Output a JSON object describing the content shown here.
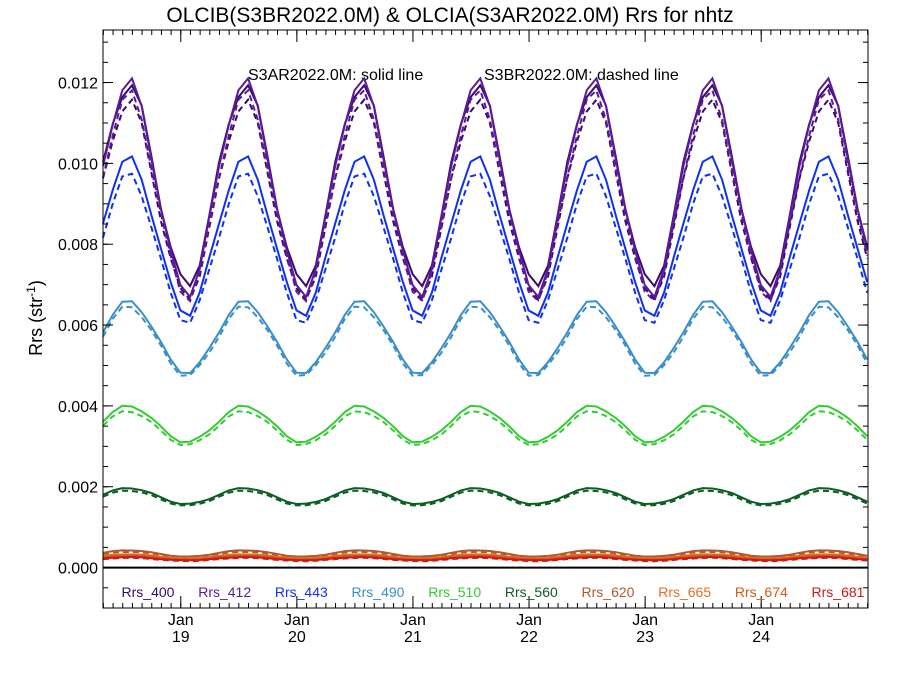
{
  "chart_data": {
    "type": "line",
    "title": "OLCIB(S3BR2022.0M) & OLCIA(S3AR2022.0M)  Rrs for nhtz",
    "ylabel": "Rrs (str",
    "ylabel_sup": "-1",
    "ylabel_close": ")",
    "annotation_solid": "S3AR2022.0M: solid line",
    "annotation_dashed": "S3BR2022.0M: dashed line",
    "ylim": [
      -0.001,
      0.0133
    ],
    "xlim": [
      2018.33,
      2024.92
    ],
    "yticks": [
      "0.000",
      "0.002",
      "0.004",
      "0.006",
      "0.008",
      "0.010",
      "0.012"
    ],
    "ytick_values": [
      0,
      0.002,
      0.004,
      0.006,
      0.008,
      0.01,
      0.012
    ],
    "xticks": [
      {
        "month": "Jan",
        "year": "19",
        "x": 2019.0
      },
      {
        "month": "Jan",
        "year": "20",
        "x": 2020.0
      },
      {
        "month": "Jan",
        "year": "21",
        "x": 2021.0
      },
      {
        "month": "Jan",
        "year": "22",
        "x": 2022.0
      },
      {
        "month": "Jan",
        "year": "23",
        "x": 2023.0
      },
      {
        "month": "Jan",
        "year": "24",
        "x": 2024.0
      }
    ],
    "x_range": [
      2018.33,
      2024.92
    ],
    "series": [
      {
        "name": "Rrs_400",
        "color": "#3b0a6e",
        "solid": {
          "mean": 0.00945,
          "amp": 0.00245
        },
        "dashed": {
          "mean": 0.0091,
          "amp": 0.0024
        }
      },
      {
        "name": "Rrs_412",
        "color": "#5b1a99",
        "solid": {
          "mean": 0.0094,
          "amp": 0.0026
        },
        "dashed": {
          "mean": 0.0092,
          "amp": 0.0025
        }
      },
      {
        "name": "Rrs_443",
        "color": "#1030f0",
        "solid": {
          "mean": 0.0082,
          "amp": 0.0019
        },
        "dashed": {
          "mean": 0.0079,
          "amp": 0.0018
        }
      },
      {
        "name": "Rrs_490",
        "color": "#3a8fc8",
        "solid": {
          "mean": 0.0057,
          "amp": 0.00088
        },
        "dashed": {
          "mean": 0.0056,
          "amp": 0.00085
        }
      },
      {
        "name": "Rrs_510",
        "color": "#33cc33",
        "solid": {
          "mean": 0.00355,
          "amp": 0.00045
        },
        "dashed": {
          "mean": 0.00345,
          "amp": 0.00042
        }
      },
      {
        "name": "Rrs_560",
        "color": "#0c5e24",
        "solid": {
          "mean": 0.00177,
          "amp": 0.0002
        },
        "dashed": {
          "mean": 0.00172,
          "amp": 0.00019
        }
      },
      {
        "name": "Rrs_620",
        "color": "#b05a30",
        "solid": {
          "mean": 0.00035,
          "amp": 8e-05
        },
        "dashed": {
          "mean": 0.00032,
          "amp": 7e-05
        }
      },
      {
        "name": "Rrs_665",
        "color": "#e0702a",
        "solid": {
          "mean": 0.00028,
          "amp": 5e-05
        },
        "dashed": {
          "mean": 0.00026,
          "amp": 5e-05
        }
      },
      {
        "name": "Rrs_674",
        "color": "#d95a10",
        "solid": {
          "mean": 0.00025,
          "amp": 5e-05
        },
        "dashed": {
          "mean": 0.00023,
          "amp": 4e-05
        }
      },
      {
        "name": "Rrs_681",
        "color": "#cc1a1a",
        "solid": {
          "mean": 0.00022,
          "amp": 4e-05
        },
        "dashed": {
          "mean": 0.0002,
          "amp": 4e-05
        }
      }
    ],
    "peak_month_fraction": 0.55,
    "grid": false,
    "legend_placement": "bottom"
  }
}
